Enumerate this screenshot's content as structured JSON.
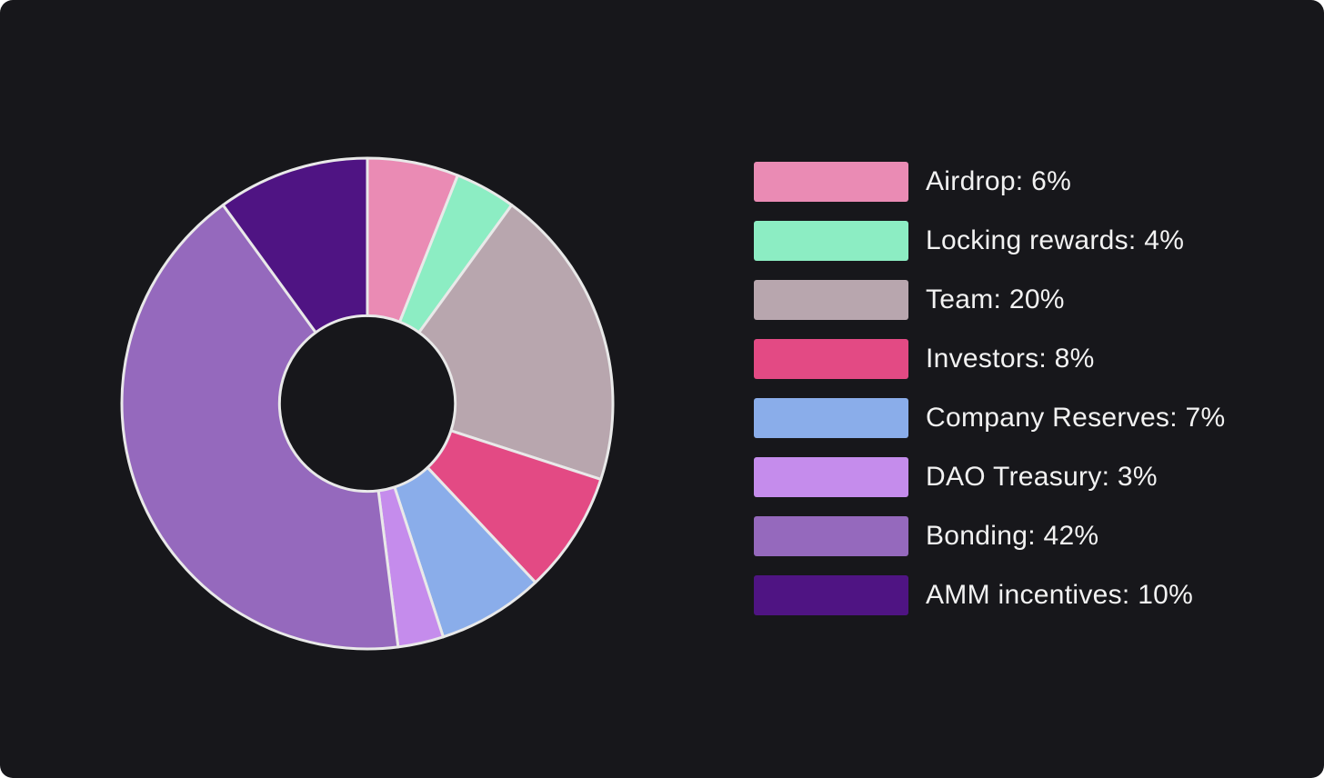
{
  "canvas": {
    "background_color": "#17171b",
    "page_background_color": "#ffffff",
    "text_color": "#f2f2f2"
  },
  "chart_data": {
    "type": "pie",
    "subtype": "donut",
    "categories": [
      "Airdrop",
      "Locking rewards",
      "Team",
      "Investors",
      "Company Reserves",
      "DAO Treasury",
      "Bonding",
      "AMM incentives"
    ],
    "values": [
      6,
      4,
      20,
      8,
      7,
      3,
      42,
      10
    ],
    "unit": "%",
    "colors": [
      "#ea8bb4",
      "#8cedc3",
      "#b8a6ae",
      "#e34a84",
      "#8aadea",
      "#c58cec",
      "#9569bd",
      "#4f1483"
    ],
    "slice_stroke_color": "#e9e9e9",
    "slice_stroke_width": 3,
    "start_angle_deg": 0,
    "direction": "clockwise",
    "inner_radius_ratio": 0.358,
    "legend_position": "right",
    "legend_labels": [
      "Airdrop: 6%",
      "Locking rewards: 4%",
      "Team: 20%",
      "Investors: 8%",
      "Company Reserves: 7%",
      "DAO Treasury: 3%",
      "Bonding: 42%",
      "AMM incentives: 10%"
    ]
  }
}
